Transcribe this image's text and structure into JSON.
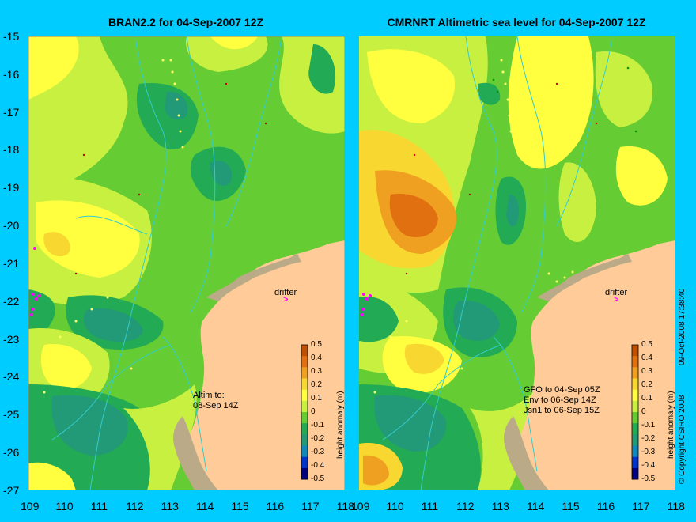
{
  "left_panel": {
    "title": "BRAN2.2 for 04-Sep-2007 12Z",
    "drifter_label": "drifter",
    "altim_note": [
      "Altim to:",
      "08-Sep 14Z"
    ]
  },
  "right_panel": {
    "title": "CMRNRT Altimetric sea level  for 04-Sep-2007 12Z",
    "drifter_label": "drifter",
    "satellite_notes": [
      "GFO to 04-Sep 05Z",
      "Env to 06-Sep 14Z",
      "Jsn1 to 06-Sep 15Z"
    ]
  },
  "y_ticks": [
    "-15",
    "-16",
    "-17",
    "-18",
    "-19",
    "-20",
    "-21",
    "-22",
    "-23",
    "-24",
    "-25",
    "-26",
    "-27"
  ],
  "x_ticks": [
    "109",
    "110",
    "111",
    "112",
    "113",
    "114",
    "115",
    "116",
    "117",
    "118"
  ],
  "colorbar": {
    "label": "height anomaly (m)",
    "ticks": [
      "0.5",
      "0.4",
      "0.3",
      "0.2",
      "0.1",
      "0",
      "-0.1",
      "-0.2",
      "-0.3",
      "-0.4",
      "-0.5"
    ],
    "colors": [
      "#C05000",
      "#E07010",
      "#F0A020",
      "#F8D830",
      "#FFFF40",
      "#C8F040",
      "#66CC33",
      "#22AA55",
      "#229977",
      "#1188BB",
      "#0033CC",
      "#000080"
    ]
  },
  "copyright": "© Copyright CSIRO 2008",
  "timestamp": "09-Oct-2008 17:38:40"
}
